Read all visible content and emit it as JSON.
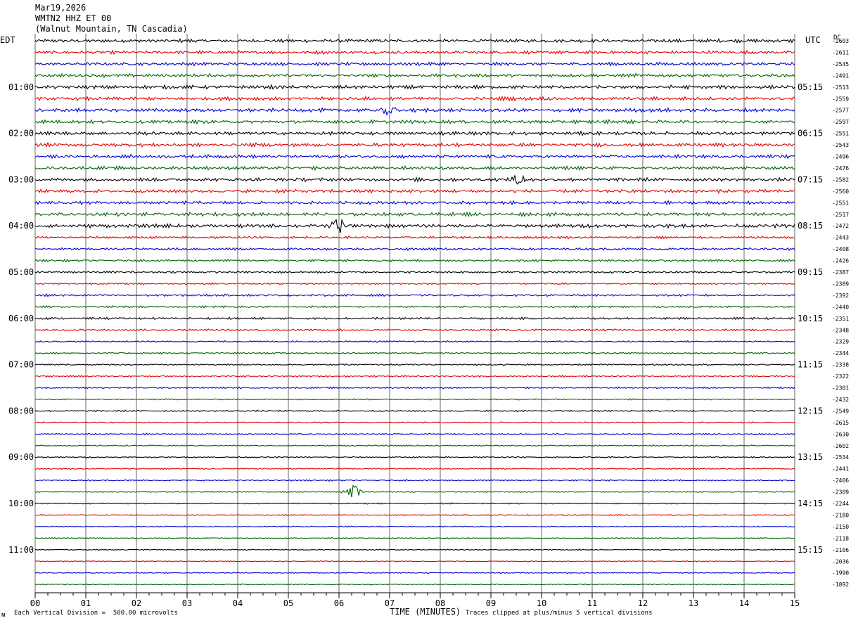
{
  "header": {
    "date": "Mar19,2026",
    "station": "WMTN2 HHZ ET 00",
    "location": "(Walnut Mountain, TN Cascadia)"
  },
  "axis_labels": {
    "left_tz": "EDT",
    "right_tz": "UTC",
    "dc_label": "DC",
    "xlabel": "TIME (MINUTES)"
  },
  "footer": {
    "scale_note": "Each Vertical Division =  500.00 microvolts",
    "clip_note": "Traces clipped at plus/minus 5 vertical divisions",
    "corner_mark": "ᴍ"
  },
  "colors": {
    "trace_cycle": [
      "#000000",
      "#e00000",
      "#0000cc",
      "#006400"
    ],
    "grid": "#000000",
    "background": "#ffffff"
  },
  "chart_data": {
    "type": "line",
    "title": "Mar19,2026 WMTN2 HHZ ET 00 (Walnut Mountain, TN Cascadia)",
    "xlabel": "TIME (MINUTES)",
    "x_ticks": [
      "00",
      "01",
      "02",
      "03",
      "04",
      "05",
      "06",
      "07",
      "08",
      "09",
      "10",
      "11",
      "12",
      "13",
      "14",
      "15"
    ],
    "xlim": [
      0,
      15
    ],
    "grid": true,
    "rows_per_hour": 4,
    "left_time_labels": [
      "01:00",
      "02:00",
      "03:00",
      "04:00",
      "05:00",
      "06:00",
      "07:00",
      "08:00",
      "09:00",
      "10:00",
      "11:00"
    ],
    "right_time_labels": [
      "05:15",
      "06:15",
      "07:15",
      "08:15",
      "09:15",
      "10:15",
      "11:15",
      "12:15",
      "13:15",
      "14:15",
      "15:15"
    ],
    "dc_offsets": [
      "-2603",
      "-2611",
      "-2545",
      "-2491",
      "-2513",
      "-2559",
      "-2577",
      "-2597",
      "-2551",
      "-2543",
      "-2496",
      "-2476",
      "-2582",
      "-2560",
      "-2551",
      "-2517",
      "-2472",
      "-2443",
      "-2408",
      "-2426",
      "-2387",
      "-2389",
      "-2392",
      "-2440",
      "-2351",
      "-2348",
      "-2329",
      "-2344",
      "-2338",
      "-2322",
      "-2301",
      "-2432",
      "-2549",
      "-2615",
      "-2630",
      "-2602",
      "-2534",
      "-2441",
      "-2406",
      "-2309",
      "-2244",
      "-2180",
      "-2150",
      "-2118",
      "-2106",
      "-2036",
      "-1990",
      "-1892"
    ],
    "amplitude_per_row": [
      1.3,
      1.2,
      1.2,
      1.2,
      1.3,
      1.3,
      1.4,
      1.3,
      1.3,
      1.3,
      1.2,
      1.2,
      1.3,
      1.3,
      1.2,
      1.3,
      1.4,
      0.9,
      0.9,
      0.8,
      0.8,
      0.7,
      0.8,
      0.7,
      0.8,
      0.7,
      0.6,
      0.6,
      0.6,
      0.6,
      0.6,
      0.5,
      0.6,
      0.5,
      0.5,
      0.5,
      0.5,
      0.5,
      0.5,
      0.4,
      0.5,
      0.4,
      0.4,
      0.4,
      0.4,
      0.4,
      0.4,
      0.4
    ],
    "events": [
      {
        "row": 6,
        "minute": 7.0,
        "amplitude": 3.0
      },
      {
        "row": 12,
        "minute": 9.55,
        "amplitude": 3.0
      },
      {
        "row": 16,
        "minute": 6.0,
        "amplitude": 4.5
      },
      {
        "row": 39,
        "minute": 6.25,
        "amplitude": 5.0
      }
    ],
    "scale_microvolts_per_division": 500.0
  }
}
